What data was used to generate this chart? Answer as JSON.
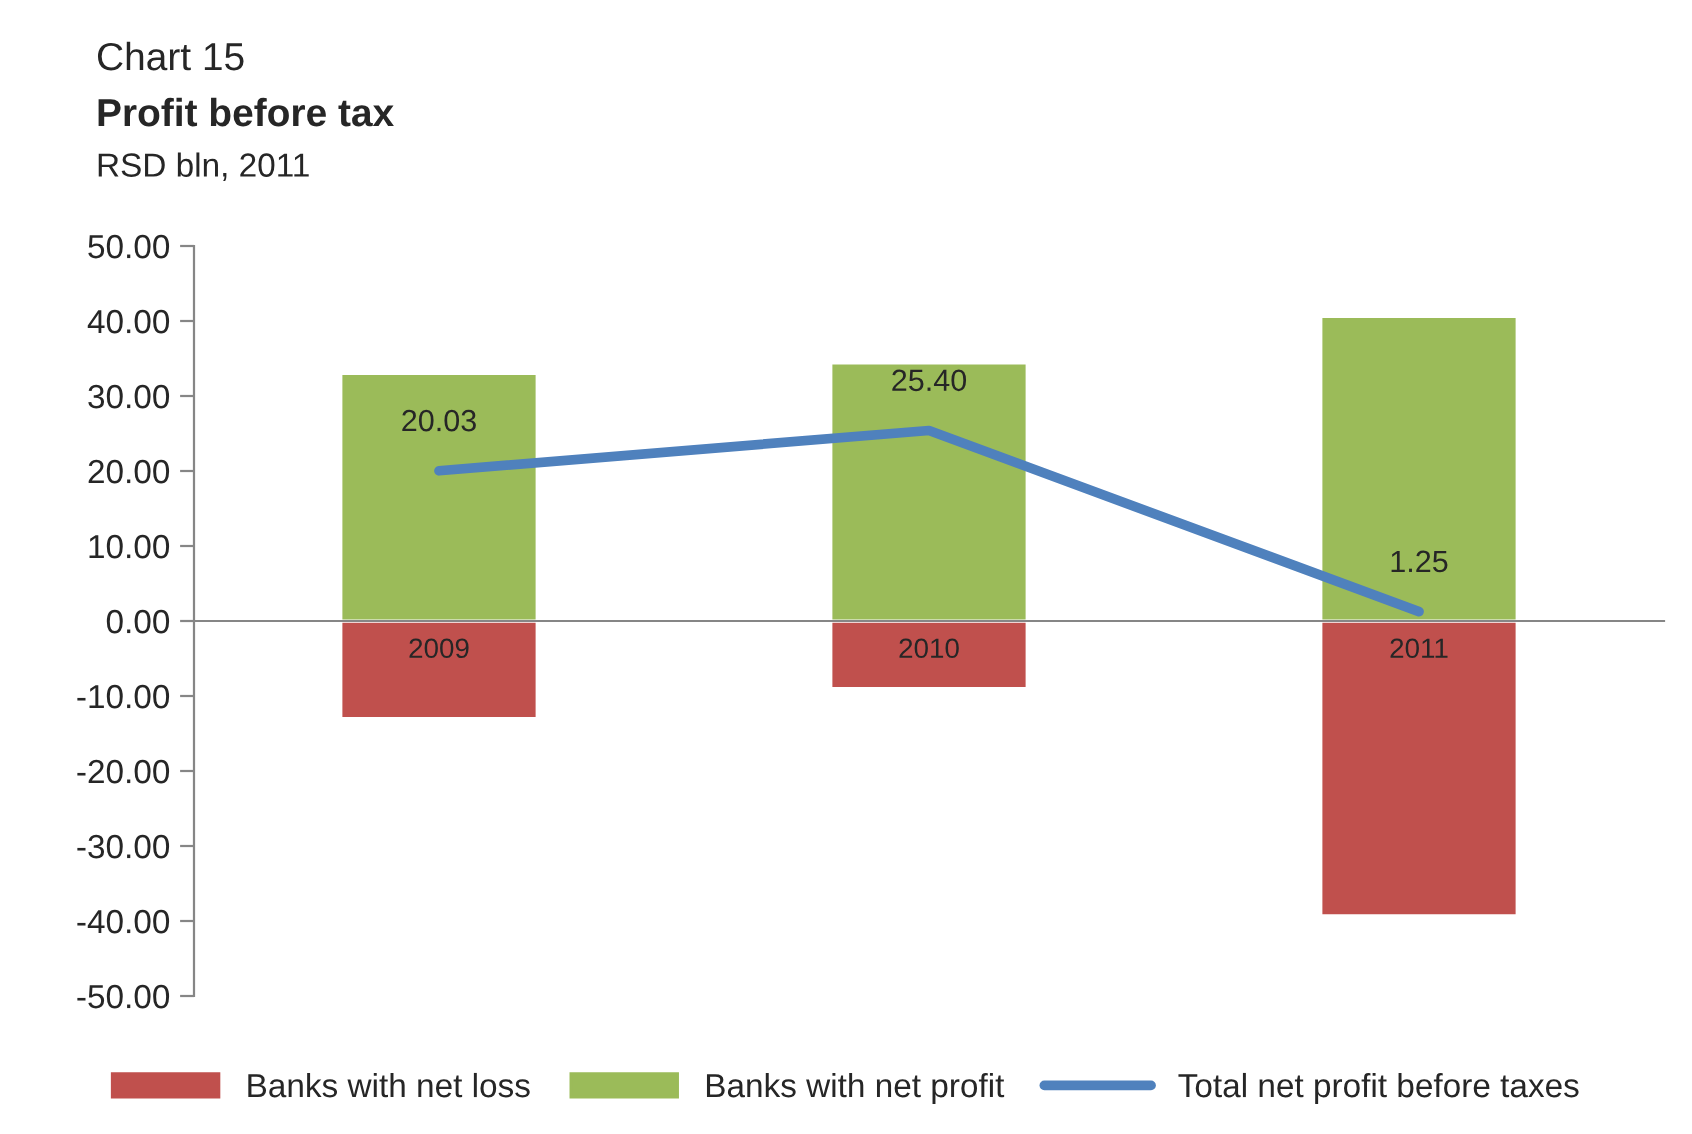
{
  "chart_data": {
    "type": "bar",
    "title": "Profit before tax",
    "subtitle": "RSD bln, 2011",
    "annotations": [
      "Chart 15"
    ],
    "categories": [
      "2009",
      "2010",
      "2011"
    ],
    "stacked": true,
    "series": [
      {
        "name": "Banks with net loss",
        "color": "#c0504d",
        "values": [
          -13.0,
          -9.0,
          -39.3
        ]
      },
      {
        "name": "Banks with net profit",
        "color": "#9bbb59",
        "values": [
          33.0,
          34.4,
          40.6
        ]
      },
      {
        "name": "Total net profit before taxes",
        "type": "line",
        "color": "#4f81bd",
        "values": [
          20.03,
          25.4,
          1.25
        ],
        "value_labels": [
          "20.03",
          "25.40",
          "1.25"
        ]
      }
    ],
    "ylim": [
      -50,
      50
    ],
    "yticks": [
      {
        "value": -50,
        "label": "-50.00"
      },
      {
        "value": -40,
        "label": "-40.00"
      },
      {
        "value": -30,
        "label": "-30.00"
      },
      {
        "value": -20,
        "label": "-20.00"
      },
      {
        "value": -10,
        "label": "-10.00"
      },
      {
        "value": 0,
        "label": "0.00"
      },
      {
        "value": 10,
        "label": "10.00"
      },
      {
        "value": 20,
        "label": "20.00"
      },
      {
        "value": 30,
        "label": "30.00"
      },
      {
        "value": 40,
        "label": "40.00"
      },
      {
        "value": 50,
        "label": "50.00"
      }
    ],
    "legend": "bottom",
    "marker": "none",
    "line_style": "solid"
  }
}
